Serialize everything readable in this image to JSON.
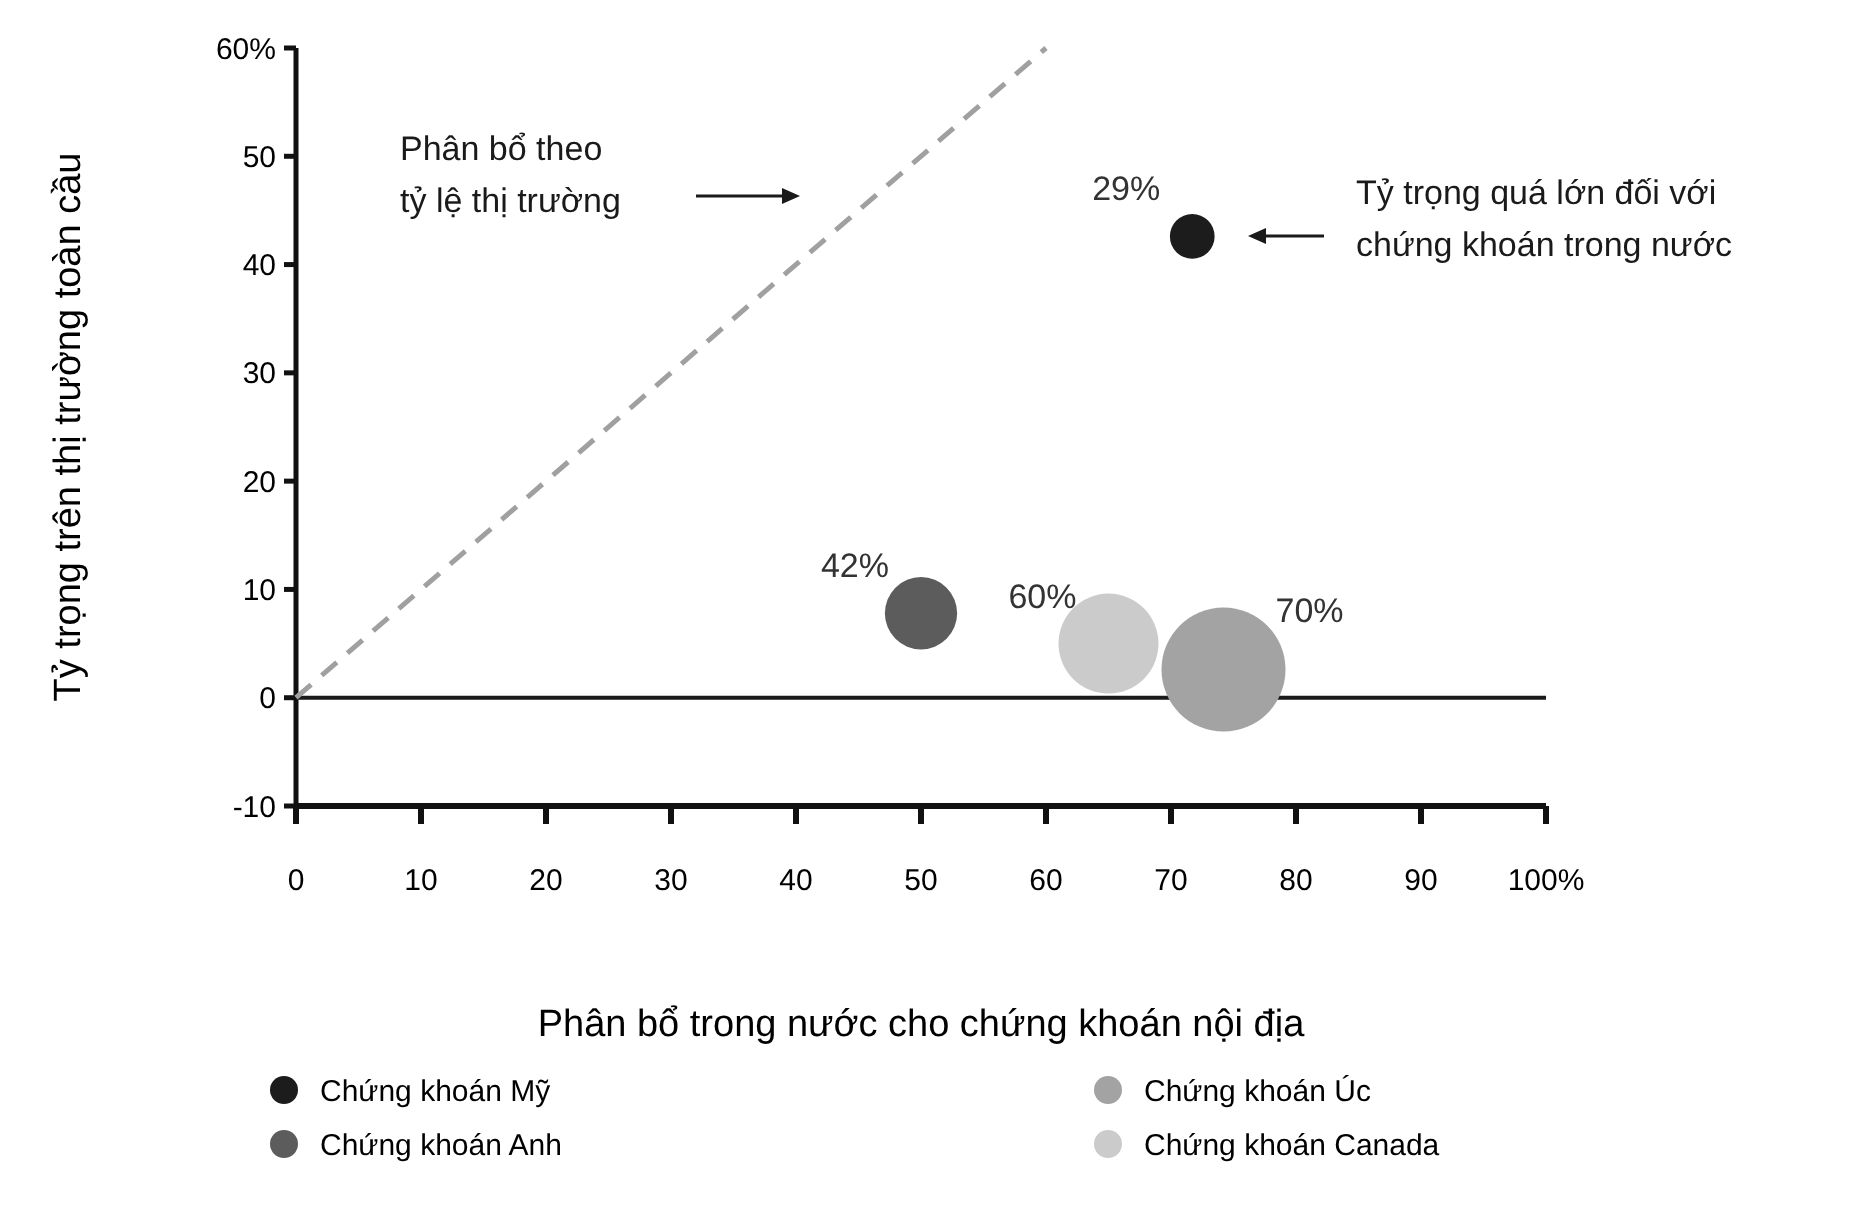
{
  "chart_data": {
    "type": "bubble",
    "xlabel": "Phân bổ trong nước cho chứng khoán nội địa",
    "ylabel": "Tỷ trọng trên thị trường toàn cầu",
    "xlim": [
      0,
      100
    ],
    "xticks": [
      0,
      10,
      20,
      30,
      40,
      50,
      60,
      70,
      80,
      90,
      {
        "value": 100,
        "label": "100%"
      }
    ],
    "ylim": [
      -10,
      60
    ],
    "yticks": [
      -10,
      0,
      10,
      20,
      30,
      40,
      50,
      {
        "value": 60,
        "label": "60%"
      }
    ],
    "series": [
      {
        "name": "Chứng khoán Mỹ",
        "color": "#1c1c1c",
        "x": [
          71.7
        ],
        "values": [
          42.6
        ],
        "sizes": [
          0.13
        ]
      },
      {
        "name": "Chứng khoán Anh",
        "color": "#5c5c5c",
        "x": [
          50
        ],
        "values": [
          7.8
        ],
        "sizes": [
          0.34
        ]
      },
      {
        "name": "Chứng khoán Úc",
        "color": "#a3a3a3",
        "x": [
          74.2
        ],
        "values": [
          2.6
        ],
        "sizes": [
          1
        ]
      },
      {
        "name": "Chứng khoán Canada",
        "color": "#cbcbcb",
        "x": [
          65
        ],
        "values": [
          5
        ],
        "sizes": [
          0.65
        ]
      },
      {
        "type": "line",
        "color": "#a0a0a0",
        "x": [
          0,
          60
        ],
        "values": [
          0,
          60
        ],
        "line_style": "dashed",
        "marker": "none"
      }
    ],
    "ref_lines": [
      {
        "axis": "y",
        "value": 0,
        "color": "#1a1a1a"
      }
    ],
    "annotations": [
      "Phân bổ theo\ntỷ lệ thị trường",
      "Tỷ trọng quá lớn đối với\nchứng khoán trong nước",
      {
        "text": "29%",
        "x": 71.7,
        "y": 42.6
      },
      {
        "text": "42%",
        "x": 50,
        "y": 7.8
      },
      {
        "text": "60%",
        "x": 65,
        "y": 5
      },
      {
        "text": "70%",
        "x": 74.2,
        "y": 2.6
      }
    ],
    "legend": "bottom",
    "grid": false,
    "marker": "circle"
  }
}
